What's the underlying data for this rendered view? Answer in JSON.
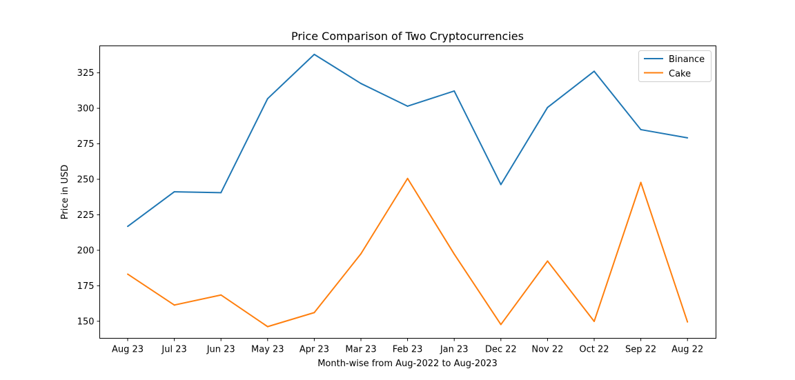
{
  "chart_data": {
    "type": "line",
    "title": "Price Comparison of Two Cryptocurrencies",
    "xlabel": "Month-wise from Aug-2022 to Aug-2023",
    "ylabel": "Price in USD",
    "categories": [
      "Aug 23",
      "Jul 23",
      "Jun 23",
      "May 23",
      "Apr 23",
      "Mar 23",
      "Feb 23",
      "Jan 23",
      "Dec 22",
      "Nov 22",
      "Oct 22",
      "Sep 22",
      "Aug 22"
    ],
    "yticks": [
      150,
      175,
      200,
      225,
      250,
      275,
      300,
      325
    ],
    "ylim": [
      138,
      344
    ],
    "grid": false,
    "legend_position": "top-right",
    "series": [
      {
        "name": "Binance",
        "color": "#1f77b4",
        "values": [
          216.8,
          241.2,
          240.6,
          306.8,
          338.0,
          317.5,
          301.5,
          312.2,
          246.3,
          300.6,
          326.1,
          285.0,
          279.2
        ]
      },
      {
        "name": "Cake",
        "color": "#ff7f0e",
        "values": [
          183.2,
          161.4,
          168.5,
          146.2,
          156.1,
          197.5,
          250.6,
          197.3,
          147.7,
          192.4,
          149.9,
          247.8,
          149.5
        ]
      }
    ]
  }
}
